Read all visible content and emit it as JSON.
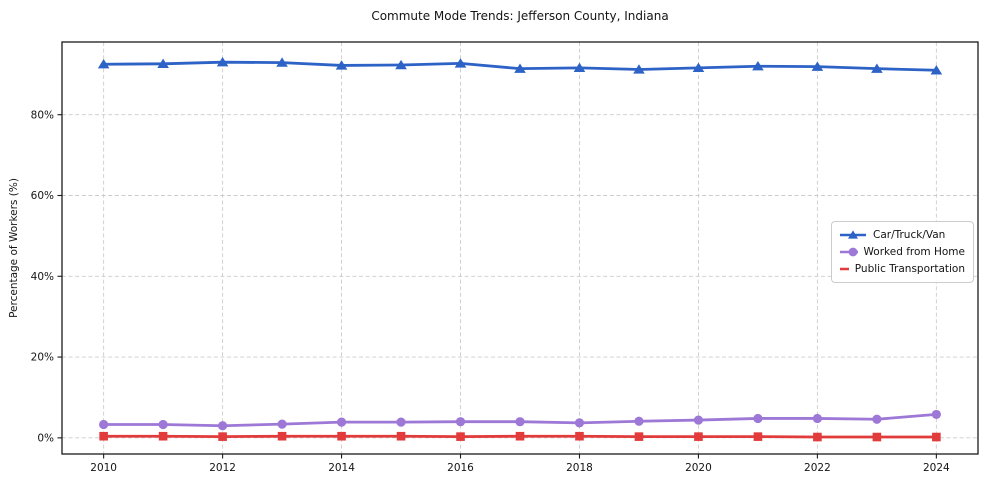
{
  "figure": {
    "title": "Commute Mode Trends: Jefferson County, Indiana"
  },
  "chart_data": {
    "type": "line",
    "title": "Commute Mode Trends: Jefferson County, Indiana",
    "xlabel": "",
    "ylabel": "Percentage of Workers (%)",
    "x": [
      2010,
      2011,
      2012,
      2013,
      2014,
      2015,
      2016,
      2017,
      2018,
      2019,
      2020,
      2021,
      2022,
      2023,
      2024
    ],
    "series": [
      {
        "name": "Car/Truck/Van",
        "color": "#2d62c6",
        "marker": "triangle",
        "values": [
          92.5,
          92.6,
          93.0,
          92.9,
          92.2,
          92.3,
          92.7,
          91.4,
          91.6,
          91.2,
          91.6,
          92.0,
          91.9,
          91.4,
          91.0
        ]
      },
      {
        "name": "Worked from Home",
        "color": "#9e78d6",
        "marker": "circle",
        "values": [
          3.3,
          3.3,
          3.0,
          3.4,
          3.9,
          3.9,
          4.0,
          4.0,
          3.7,
          4.1,
          4.4,
          4.8,
          4.8,
          4.6,
          5.8
        ]
      },
      {
        "name": "Public Transportation",
        "color": "#e23b3b",
        "marker": "square",
        "values": [
          0.4,
          0.4,
          0.3,
          0.4,
          0.4,
          0.4,
          0.3,
          0.4,
          0.4,
          0.3,
          0.3,
          0.3,
          0.2,
          0.2,
          0.2
        ]
      }
    ],
    "xlim": [
      2009.3,
      2024.7
    ],
    "ylim": [
      -4,
      98
    ],
    "xticks": [
      2010,
      2012,
      2014,
      2016,
      2018,
      2020,
      2022,
      2024
    ],
    "yticks": [
      0,
      20,
      40,
      60,
      80
    ],
    "ytick_suffix": "%",
    "grid": true,
    "grid_style": "dashed",
    "legend_position": "center right"
  },
  "style": {
    "grid_color": "#cccccc",
    "spine_color": "#1b1b1b",
    "tick_label_color": "#141414",
    "background": "#ffffff"
  }
}
